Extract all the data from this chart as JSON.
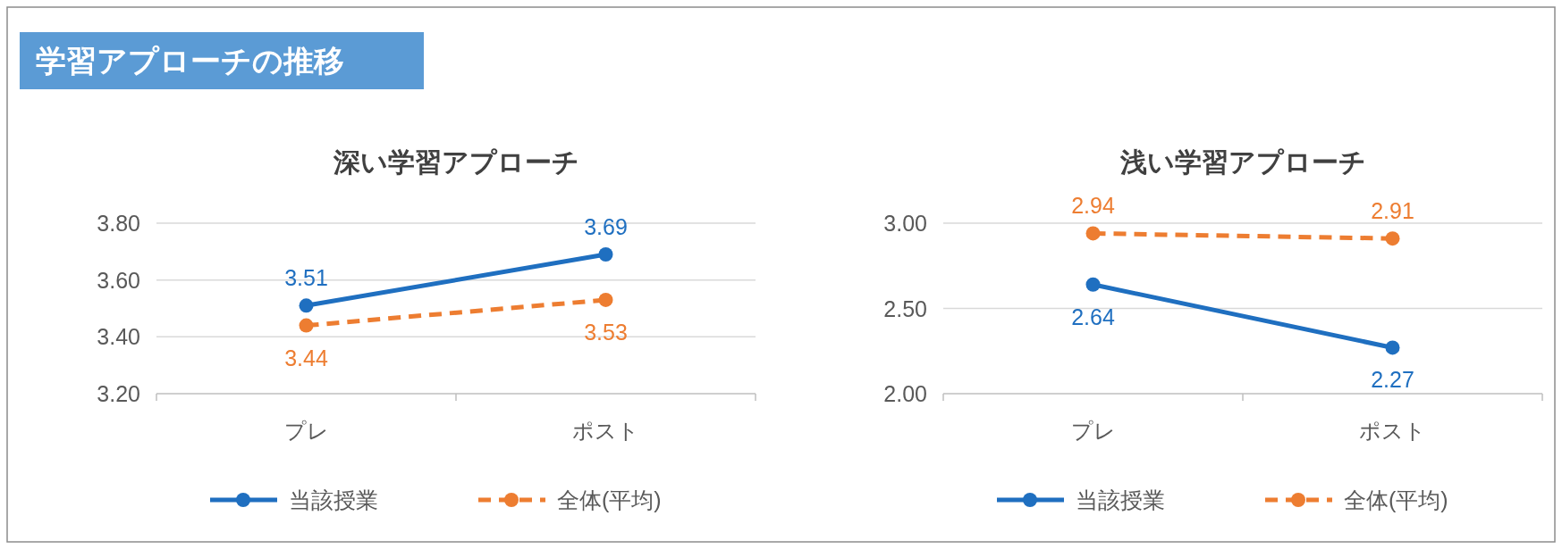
{
  "chart_data": [
    {
      "type": "line",
      "title": "深い学習アプローチ",
      "annotations": [
        "学習アプローチの推移"
      ],
      "categories": [
        "プレ",
        "ポスト"
      ],
      "series": [
        {
          "name": "当該授業",
          "color": "#1f6fc0",
          "values": [
            3.51,
            3.69
          ],
          "line_style": "solid"
        },
        {
          "name": "全体(平均)",
          "color": "#ed7d31",
          "values": [
            3.44,
            3.53
          ],
          "line_style": "dashed"
        }
      ],
      "ylim": [
        3.2,
        3.8
      ],
      "yticks": [
        {
          "value": 3.2,
          "label": "3.20"
        },
        {
          "value": 3.4,
          "label": "3.40"
        },
        {
          "value": 3.6,
          "label": "3.60"
        },
        {
          "value": 3.8,
          "label": "3.80"
        }
      ],
      "grid": "y",
      "legend": "bottom",
      "marker": "circle",
      "data_labels": true
    },
    {
      "type": "line",
      "title": "浅い学習アプローチ",
      "categories": [
        "プレ",
        "ポスト"
      ],
      "series": [
        {
          "name": "当該授業",
          "color": "#1f6fc0",
          "values": [
            2.64,
            2.27
          ],
          "line_style": "solid"
        },
        {
          "name": "全体(平均)",
          "color": "#ed7d31",
          "values": [
            2.94,
            2.91
          ],
          "line_style": "dashed"
        }
      ],
      "ylim": [
        2,
        3
      ],
      "yticks": [
        {
          "value": 2,
          "label": "2.00"
        },
        {
          "value": 2.5,
          "label": "2.50"
        },
        {
          "value": 3,
          "label": "3.00"
        }
      ],
      "grid": "y",
      "legend": "bottom",
      "marker": "circle",
      "data_labels": true
    }
  ]
}
